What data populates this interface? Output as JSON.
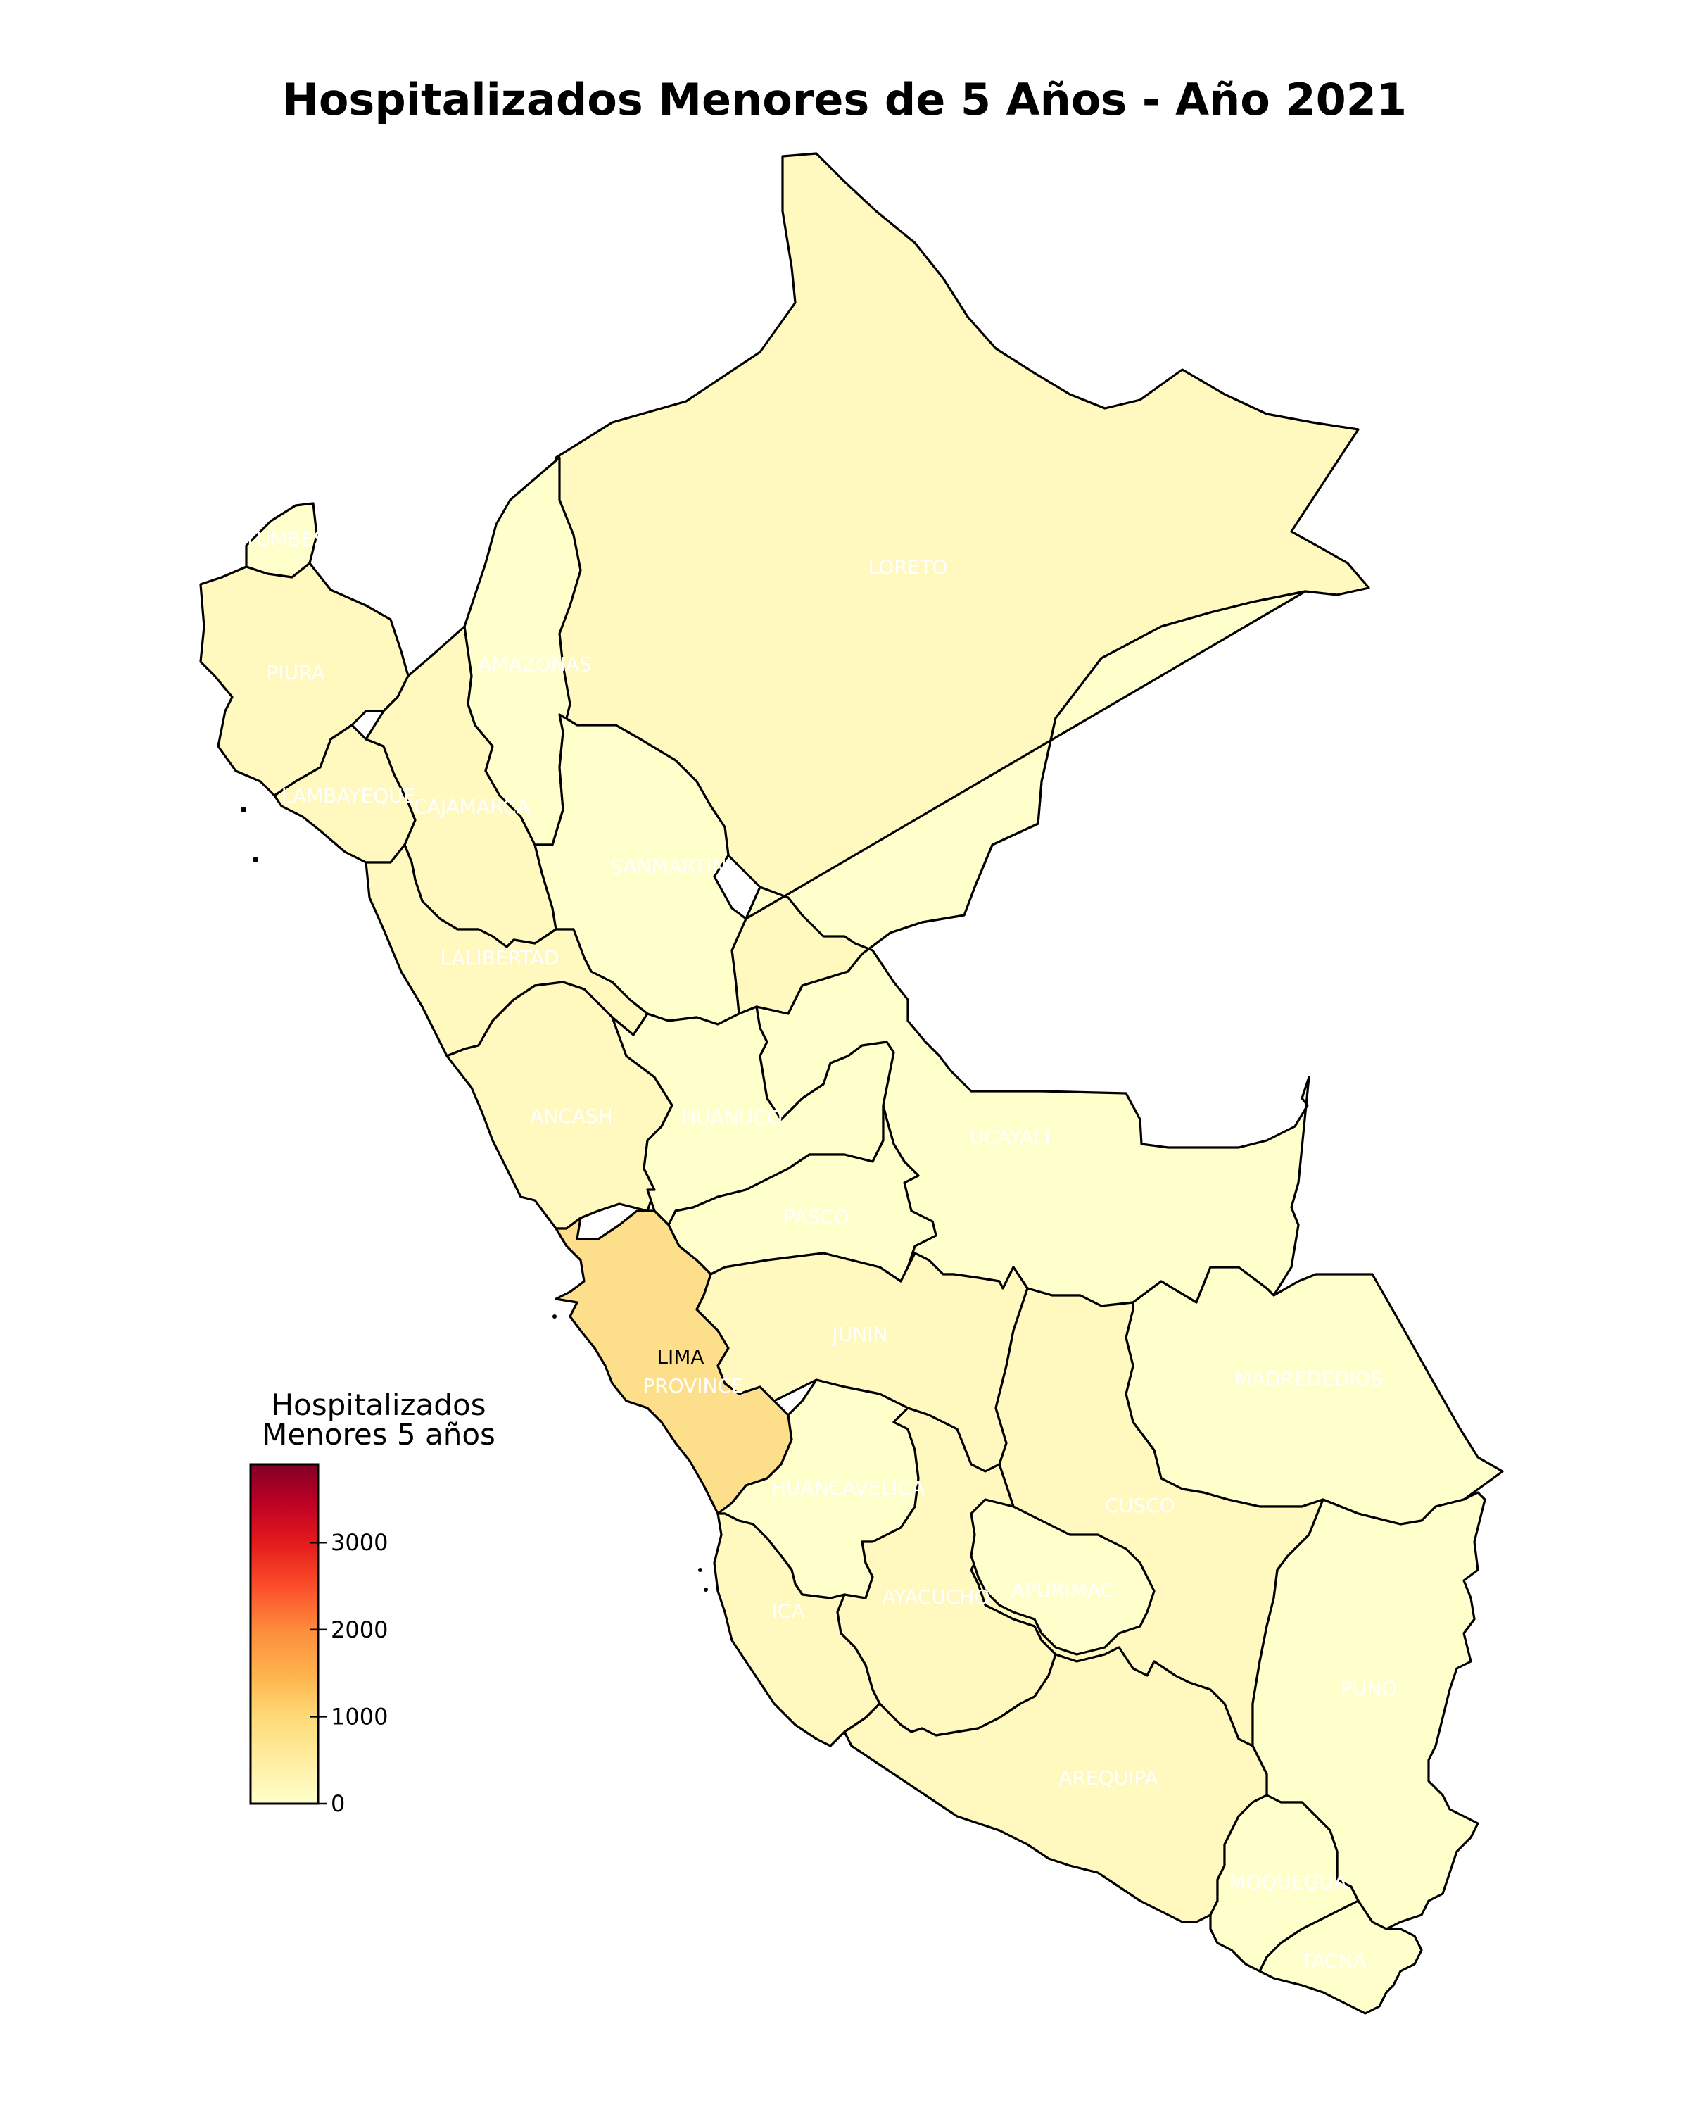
{
  "title": "Hospitalizados Menores de 5 Años - Año 2021",
  "colors": {
    "low": "#ffffcc",
    "light": "#fff8bf",
    "lima": "#fddf8b",
    "border": "#000000",
    "label": "#ffffff"
  },
  "colorbar": {
    "title_line1": "Hospitalizados",
    "title_line2": "Menores 5 años",
    "min": 0,
    "max": 3900,
    "ticks": [
      {
        "value": 0,
        "label": "0"
      },
      {
        "value": 1000,
        "label": "1000"
      },
      {
        "value": 2000,
        "label": "2000"
      },
      {
        "value": 3000,
        "label": "3000"
      }
    ],
    "colormap": "YlOrRd"
  },
  "regions": [
    {
      "id": "tumbes",
      "label": "TUMBES",
      "value": 40
    },
    {
      "id": "piura",
      "label": "PIURA",
      "value": 150
    },
    {
      "id": "lambayeque",
      "label": "LAMBAYEQUE",
      "value": 120
    },
    {
      "id": "cajamarca",
      "label": "CAJAMARCA",
      "value": 130
    },
    {
      "id": "amazonas",
      "label": "AMAZONAS",
      "value": 50
    },
    {
      "id": "loreto",
      "label": "LORETO",
      "value": 260
    },
    {
      "id": "sanmartin",
      "label": "SANMARTIN",
      "value": 80
    },
    {
      "id": "lalibertad",
      "label": "LALIBERTAD",
      "value": 140
    },
    {
      "id": "ancash",
      "label": "ANCASH",
      "value": 120
    },
    {
      "id": "huanuco",
      "label": "HUANUCO",
      "value": 70
    },
    {
      "id": "ucayali",
      "label": "UCAYALI",
      "value": 90
    },
    {
      "id": "pasco",
      "label": "PASCO",
      "value": 40
    },
    {
      "id": "lima",
      "label": "LIMA",
      "value": 820
    },
    {
      "id": "limaprovince",
      "label": "PROVINCE",
      "value": 820
    },
    {
      "id": "junin",
      "label": "JUNIN",
      "value": 130
    },
    {
      "id": "madrededios",
      "label": "MADREDEDIOS",
      "value": 30
    },
    {
      "id": "huancavelica",
      "label": "HUANCAVELICA",
      "value": 40
    },
    {
      "id": "cusco",
      "label": "CUSCO",
      "value": 140
    },
    {
      "id": "ica",
      "label": "ICA",
      "value": 120
    },
    {
      "id": "ayacucho",
      "label": "AYACUCHO",
      "value": 70
    },
    {
      "id": "apurimac",
      "label": "APURIMAC",
      "value": 40
    },
    {
      "id": "puno",
      "label": "PUNO",
      "value": 80
    },
    {
      "id": "arequipa",
      "label": "AREQUIPA",
      "value": 180
    },
    {
      "id": "moquegua",
      "label": "MOQUEGUA",
      "value": 30
    },
    {
      "id": "tacna",
      "label": "TACNA",
      "value": 50
    }
  ]
}
